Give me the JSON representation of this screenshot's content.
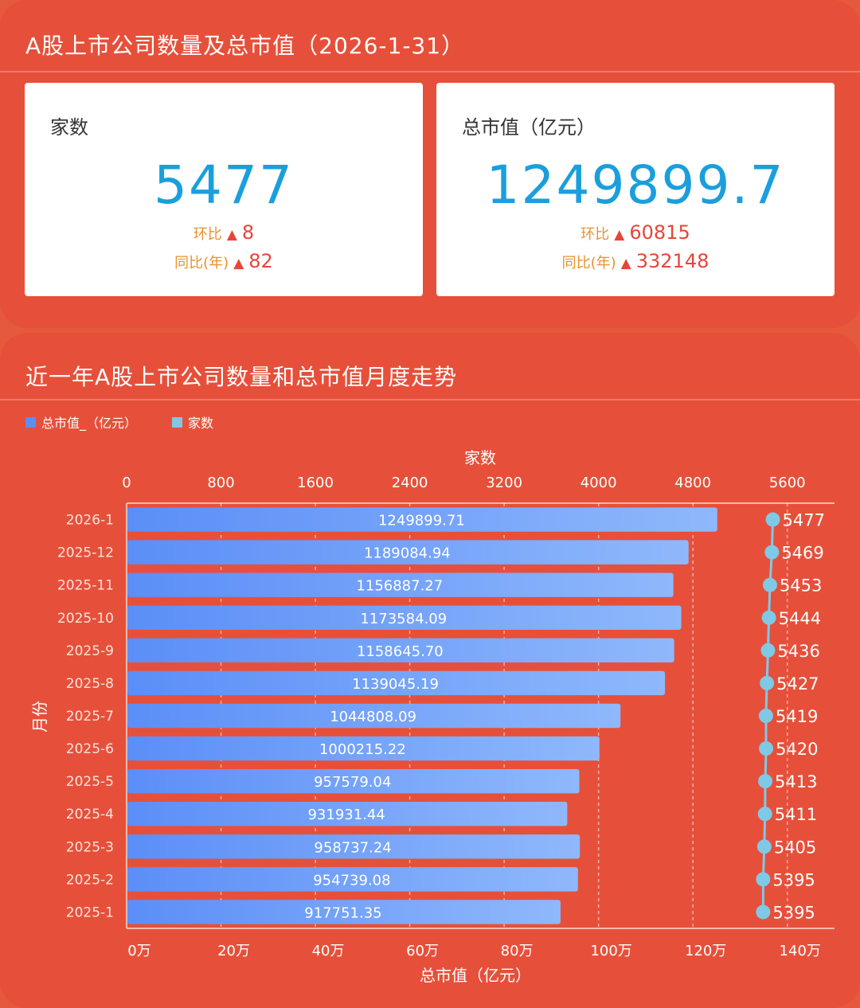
{
  "top": {
    "title": "A股上市公司数量及总市值（2026-1-31）",
    "count_card": {
      "label": "家数",
      "value": "5477",
      "mom_label": "环比",
      "mom_value": "8",
      "yoy_label": "同比(年)",
      "yoy_value": "82"
    },
    "value_card": {
      "label": "总市值（亿元）",
      "value": "1249899.7",
      "mom_label": "环比",
      "mom_value": "60815",
      "yoy_label": "同比(年)",
      "yoy_value": "332148"
    },
    "up_icon": "triangle-up-icon"
  },
  "chart_title": "近一年A股上市公司数量和总市值月度走势",
  "colors": {
    "background": "#e6503a",
    "bar": "#5b8ef7",
    "line": "#7ec9e6",
    "big_number": "#1a9fdc",
    "up": "#e5463a",
    "label_orange": "#e8922d"
  },
  "chart_data": {
    "type": "bar",
    "orientation": "horizontal",
    "title": "近一年A股上市公司数量和总市值月度走势",
    "ylabel": "月份",
    "xlabel": "总市值（亿元）",
    "x2label": "家数",
    "legend": [
      "总市值_（亿元）",
      "家数"
    ],
    "legend_position": "top-left",
    "categories": [
      "2026-1",
      "2025-12",
      "2025-11",
      "2025-10",
      "2025-9",
      "2025-8",
      "2025-7",
      "2025-6",
      "2025-5",
      "2025-4",
      "2025-3",
      "2025-2",
      "2025-1"
    ],
    "series": [
      {
        "name": "总市值_（亿元）",
        "type": "bar",
        "axis": "bottom",
        "values": [
          1249899.71,
          1189084.94,
          1156887.27,
          1173584.09,
          1158645.7,
          1139045.19,
          1044808.09,
          1000215.22,
          957579.04,
          931931.44,
          958737.24,
          954739.08,
          917751.35
        ],
        "labels": [
          "1249899.71",
          "1189084.94",
          "1156887.27",
          "1173584.09",
          "1158645.70",
          "1139045.19",
          "1044808.09",
          "1000215.22",
          "957579.04",
          "931931.44",
          "958737.24",
          "954739.08",
          "917751.35"
        ]
      },
      {
        "name": "家数",
        "type": "line",
        "axis": "top",
        "values": [
          5477,
          5469,
          5453,
          5444,
          5436,
          5427,
          5419,
          5420,
          5413,
          5411,
          5405,
          5395,
          5395
        ]
      }
    ],
    "bottom_axis": {
      "range": [
        0,
        1500000
      ],
      "ticks": [
        0,
        200000,
        400000,
        600000,
        800000,
        1000000,
        1200000,
        1400000
      ],
      "tick_labels": [
        "0万",
        "20万",
        "40万",
        "60万",
        "80万",
        "100万",
        "120万",
        "140万"
      ]
    },
    "top_axis": {
      "range": [
        0,
        6000
      ],
      "ticks": [
        0,
        800,
        1600,
        2400,
        3200,
        4000,
        4800,
        5600
      ],
      "tick_labels": [
        "0",
        "800",
        "1600",
        "2400",
        "3200",
        "4000",
        "4800",
        "5600"
      ]
    },
    "grid": true
  }
}
